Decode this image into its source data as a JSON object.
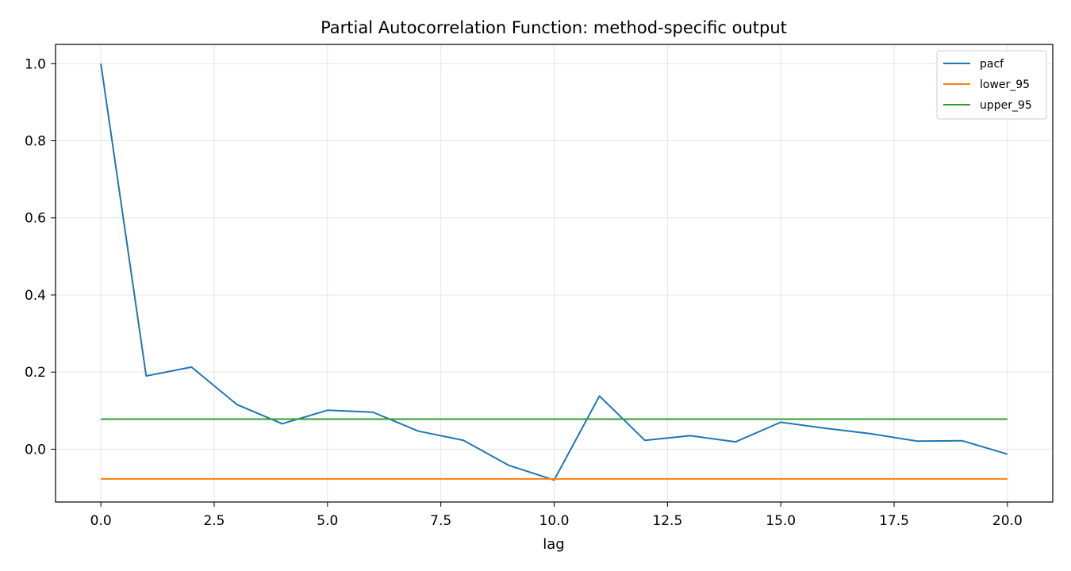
{
  "chart_data": {
    "type": "line",
    "title": "Partial Autocorrelation Function: method-specific output",
    "xlabel": "lag",
    "ylabel": "",
    "xlim": [
      -1,
      21
    ],
    "ylim": [
      -0.137,
      1.05
    ],
    "x_ticks": [
      0.0,
      2.5,
      5.0,
      7.5,
      10.0,
      12.5,
      15.0,
      17.5,
      20.0
    ],
    "x_tick_labels": [
      "0.0",
      "2.5",
      "5.0",
      "7.5",
      "10.0",
      "12.5",
      "15.0",
      "17.5",
      "20.0"
    ],
    "y_ticks": [
      0.0,
      0.2,
      0.4,
      0.6,
      0.8,
      1.0
    ],
    "y_tick_labels": [
      "0.0",
      "0.2",
      "0.4",
      "0.6",
      "0.8",
      "1.0"
    ],
    "grid": true,
    "legend_position": "top-right",
    "x": [
      0,
      1,
      2,
      3,
      4,
      5,
      6,
      7,
      8,
      9,
      10,
      11,
      12,
      13,
      14,
      15,
      16,
      17,
      18,
      19,
      20
    ],
    "series": [
      {
        "name": "pacf",
        "color": "#1f77b4",
        "values": [
          1.0,
          0.19,
          0.213,
          0.116,
          0.066,
          0.101,
          0.096,
          0.047,
          0.023,
          -0.042,
          -0.08,
          0.138,
          0.023,
          0.035,
          0.019,
          0.07,
          0.054,
          0.04,
          0.021,
          0.022,
          -0.013
        ]
      },
      {
        "name": "lower_95",
        "color": "#ff7f0e",
        "values": [
          -0.077,
          -0.077,
          -0.077,
          -0.077,
          -0.077,
          -0.077,
          -0.077,
          -0.077,
          -0.077,
          -0.077,
          -0.077,
          -0.077,
          -0.077,
          -0.077,
          -0.077,
          -0.077,
          -0.077,
          -0.077,
          -0.077,
          -0.077,
          -0.077
        ]
      },
      {
        "name": "upper_95",
        "color": "#2ca02c",
        "values": [
          0.078,
          0.078,
          0.078,
          0.078,
          0.078,
          0.078,
          0.078,
          0.078,
          0.078,
          0.078,
          0.078,
          0.078,
          0.078,
          0.078,
          0.078,
          0.078,
          0.078,
          0.078,
          0.078,
          0.078,
          0.078
        ]
      }
    ]
  }
}
